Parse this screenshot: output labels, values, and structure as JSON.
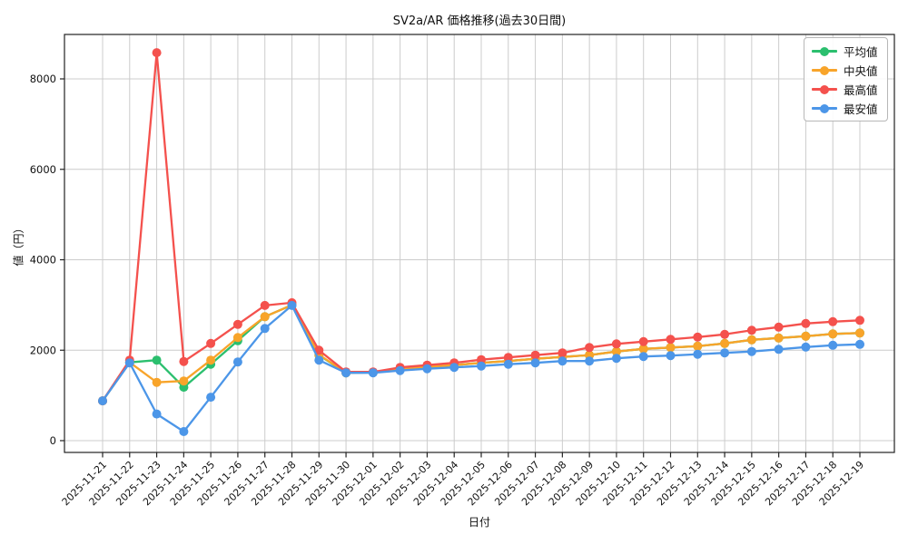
{
  "figure": {
    "title": "SV2a/AR 価格推移(過去30日間)",
    "xlabel": "日付",
    "ylabel": "値（円）"
  },
  "legend": {
    "position": "upper right",
    "items": [
      "平均値",
      "中央値",
      "最高値",
      "最安値"
    ]
  },
  "colors": {
    "mean": "#2bbf6e",
    "median": "#f8a42a",
    "max": "#f4514d",
    "min": "#4c96e8",
    "grid": "#cccccc",
    "spine": "#222222",
    "text": "#111111"
  },
  "chart_data": {
    "type": "line",
    "title": "SV2a/AR 価格推移(過去30日間)",
    "xlabel": "日付",
    "ylabel": "値（円）",
    "grid": true,
    "legend_position": "upper right",
    "marker": "circle",
    "x_tick_rotation": 45,
    "yticks": [
      0,
      2000,
      4000,
      6000,
      8000
    ],
    "ylim": [
      -260,
      8980
    ],
    "categories": [
      "2025-11-21",
      "2025-11-22",
      "2025-11-23",
      "2025-11-24",
      "2025-11-25",
      "2025-11-26",
      "2025-11-27",
      "2025-11-28",
      "2025-11-29",
      "2025-11-30",
      "2025-12-01",
      "2025-12-02",
      "2025-12-03",
      "2025-12-04",
      "2025-12-05",
      "2025-12-06",
      "2025-12-07",
      "2025-12-08",
      "2025-12-09",
      "2025-12-10",
      "2025-12-11",
      "2025-12-12",
      "2025-12-13",
      "2025-12-14",
      "2025-12-15",
      "2025-12-16",
      "2025-12-17",
      "2025-12-18",
      "2025-12-19"
    ],
    "series": [
      {
        "key": "mean",
        "name": "平均値",
        "color": "#2bbf6e",
        "values": [
          880,
          1730,
          1780,
          1180,
          1690,
          2210,
          2740,
          3000,
          1890,
          1500,
          1510,
          1570,
          1630,
          1670,
          1720,
          1760,
          1810,
          1850,
          1890,
          1970,
          2030,
          2060,
          2090,
          2150,
          2230,
          2270,
          2310,
          2360,
          2380
        ]
      },
      {
        "key": "median",
        "name": "中央値",
        "color": "#f8a42a",
        "values": [
          880,
          1730,
          1290,
          1320,
          1780,
          2280,
          2740,
          3000,
          1900,
          1500,
          1510,
          1570,
          1630,
          1670,
          1720,
          1760,
          1810,
          1850,
          1890,
          1970,
          2030,
          2060,
          2090,
          2150,
          2230,
          2270,
          2310,
          2360,
          2380
        ]
      },
      {
        "key": "max",
        "name": "最高値",
        "color": "#f4514d",
        "values": [
          880,
          1780,
          8580,
          1750,
          2150,
          2570,
          2990,
          3050,
          2000,
          1520,
          1520,
          1620,
          1670,
          1720,
          1790,
          1840,
          1890,
          1940,
          2060,
          2140,
          2190,
          2240,
          2290,
          2350,
          2440,
          2510,
          2590,
          2630,
          2660
        ]
      },
      {
        "key": "min",
        "name": "最安値",
        "color": "#4c96e8",
        "values": [
          880,
          1720,
          590,
          200,
          960,
          1740,
          2480,
          2990,
          1780,
          1500,
          1500,
          1550,
          1590,
          1620,
          1650,
          1690,
          1720,
          1760,
          1760,
          1820,
          1860,
          1880,
          1910,
          1940,
          1970,
          2020,
          2070,
          2110,
          2130
        ]
      }
    ]
  }
}
